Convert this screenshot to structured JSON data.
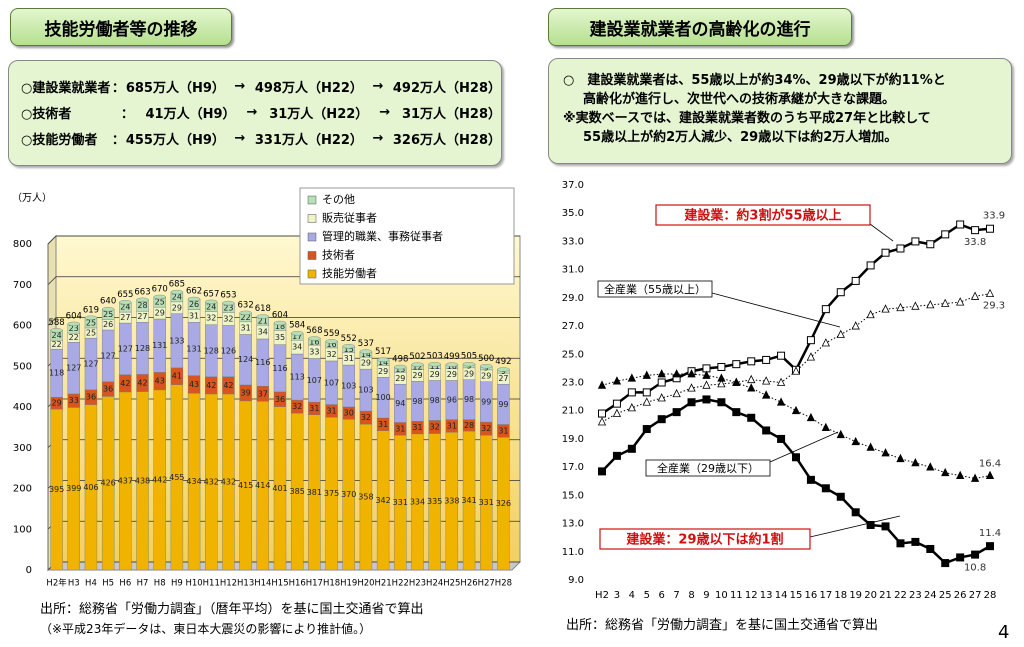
{
  "left_header": "技能労働者等の推移",
  "left_summary": [
    [
      "○建設業就業者",
      "：",
      "685万人（H9）",
      "→",
      "498万人（H22）",
      "→",
      "492万人（H28）"
    ],
    [
      "○技術者",
      "：",
      "41万人（H9）",
      "→",
      "31万人（H22）",
      "→",
      "31万人（H28）"
    ],
    [
      "○技能労働者",
      "：",
      "455万人（H9）",
      "→",
      "331万人（H22）",
      "→",
      "326万人（H28）"
    ]
  ],
  "right_header": "建設業就業者の高齢化の進行",
  "right_summary": [
    "○　建設業就業者は、55歳以上が約34%、29歳以下が約11%と",
    "高齢化が進行し、次世代への技術承継が大きな課題。",
    "※実数ベースでは、建設業就業者数のうち平成27年と比較して",
    "55歳以上が約2万人減少、29歳以下は約2万人増加。"
  ],
  "left_sources": [
    "出所：総務省「労働力調査」（暦年平均）を基に国土交通省で算出",
    "（※平成23年データは、東日本大震災の影響により推計値。）"
  ],
  "right_source": "出所：総務省「労働力調査」を基に国土交通省で算出",
  "page_number": "4",
  "chart_data": [
    {
      "type": "bar",
      "stacked": true,
      "ylabel": "（万人）",
      "categories": [
        "H2年",
        "H3",
        "H4",
        "H5",
        "H6",
        "H7",
        "H8",
        "H9",
        "H10",
        "H11",
        "H12",
        "H13",
        "H14",
        "H15",
        "H16",
        "H17",
        "H18",
        "H19",
        "H20",
        "H21",
        "H22",
        "H23",
        "H24",
        "H25",
        "H26",
        "H27",
        "H28"
      ],
      "series": [
        {
          "name": "技能労働者",
          "color": "#f0b400",
          "values": [
            395,
            399,
            406,
            426,
            437,
            438,
            442,
            455,
            434,
            432,
            432,
            415,
            414,
            401,
            385,
            381,
            375,
            370,
            358,
            342,
            331,
            334,
            335,
            338,
            341,
            331,
            326
          ]
        },
        {
          "name": "技術者",
          "color": "#d9541e",
          "values": [
            29,
            33,
            36,
            36,
            42,
            42,
            43,
            41,
            43,
            42,
            42,
            39,
            37,
            36,
            32,
            31,
            31,
            30,
            32,
            31,
            31,
            31,
            32,
            31,
            28,
            32,
            31
          ]
        },
        {
          "name": "管理的職業、事務従事者",
          "color": "#a9a9e6",
          "values": [
            118,
            127,
            127,
            127,
            127,
            128,
            131,
            133,
            131,
            128,
            126,
            124,
            116,
            116,
            113,
            107,
            107,
            103,
            103,
            100,
            94,
            98,
            98,
            96,
            98,
            99,
            99
          ]
        },
        {
          "name": "販売従事者",
          "color": "#eef4c8",
          "values": [
            22,
            22,
            25,
            26,
            27,
            27,
            29,
            29,
            31,
            32,
            32,
            31,
            34,
            35,
            34,
            33,
            32,
            31,
            29,
            29,
            29,
            29,
            29,
            29,
            29,
            29,
            27
          ]
        },
        {
          "name": "その他",
          "color": "#b6dfb6",
          "values": [
            24,
            23,
            25,
            25,
            24,
            28,
            25,
            24,
            26,
            24,
            23,
            22,
            21,
            18,
            17,
            16,
            16,
            15,
            14,
            14,
            13,
            12,
            11,
            10,
            9,
            9,
            9
          ]
        }
      ],
      "totals": [
        588,
        604,
        619,
        640,
        655,
        663,
        670,
        685,
        662,
        657,
        653,
        632,
        618,
        604,
        584,
        568,
        559,
        552,
        537,
        517,
        498,
        502,
        503,
        499,
        505,
        500,
        492
      ],
      "ylim": [
        0,
        800
      ],
      "yticks": [
        0,
        100,
        200,
        300,
        400,
        500,
        600,
        700,
        800
      ],
      "grid": true
    },
    {
      "type": "line",
      "categories": [
        "H2",
        "3",
        "4",
        "5",
        "6",
        "7",
        "8",
        "9",
        "10",
        "11",
        "12",
        "13",
        "14",
        "15",
        "16",
        "17",
        "18",
        "19",
        "20",
        "21",
        "22",
        "23",
        "24",
        "25",
        "26",
        "27",
        "28"
      ],
      "series": [
        {
          "name": "建設業：約3割が55歳以上",
          "color": "#000000",
          "line_style": "solid",
          "marker": "open-square",
          "values": [
            20.8,
            21.5,
            22.3,
            22.3,
            23.0,
            23.3,
            23.8,
            24.0,
            24.1,
            24.3,
            24.5,
            24.6,
            24.9,
            23.9,
            26.0,
            28.2,
            29.4,
            30.2,
            31.3,
            32.2,
            32.5,
            33.0,
            32.8,
            33.5,
            34.2,
            33.8,
            33.9
          ],
          "value_labels": [
            null,
            null,
            null,
            null,
            null,
            null,
            null,
            null,
            null,
            null,
            null,
            null,
            null,
            null,
            null,
            null,
            null,
            null,
            null,
            null,
            null,
            null,
            null,
            null,
            null,
            "33.8",
            "33.9"
          ]
        },
        {
          "name": "全産業（55歳以上）",
          "color": "#000000",
          "line_style": "dotted",
          "marker": "open-triangle",
          "values": [
            20.2,
            20.8,
            21.2,
            21.6,
            21.9,
            22.2,
            22.6,
            22.8,
            22.9,
            23.0,
            23.2,
            23.1,
            23.0,
            23.8,
            24.8,
            25.8,
            26.4,
            27.0,
            27.8,
            28.2,
            28.3,
            28.4,
            28.5,
            28.6,
            28.7,
            29.1,
            29.3
          ],
          "value_labels": [
            null,
            null,
            null,
            null,
            null,
            null,
            null,
            null,
            null,
            null,
            null,
            null,
            null,
            null,
            null,
            null,
            null,
            null,
            null,
            null,
            null,
            null,
            null,
            null,
            null,
            null,
            "29.3"
          ]
        },
        {
          "name": "全産業（29歳以下）",
          "color": "#000000",
          "line_style": "dotted",
          "marker": "triangle",
          "values": [
            22.8,
            23.1,
            23.3,
            23.5,
            23.6,
            23.6,
            23.6,
            23.5,
            23.3,
            23.0,
            22.6,
            22.1,
            21.6,
            21.0,
            20.5,
            19.8,
            19.3,
            18.8,
            18.4,
            18.0,
            17.6,
            17.3,
            17.0,
            16.6,
            16.4,
            16.2,
            16.4
          ],
          "value_labels": [
            null,
            null,
            null,
            null,
            null,
            null,
            null,
            null,
            null,
            null,
            null,
            null,
            null,
            null,
            null,
            null,
            null,
            null,
            null,
            null,
            null,
            null,
            null,
            null,
            null,
            null,
            "16.4"
          ]
        },
        {
          "name": "建設業：29歳以下は約1割",
          "color": "#000000",
          "line_style": "solid",
          "marker": "square",
          "values": [
            16.7,
            17.8,
            18.3,
            19.7,
            20.4,
            20.9,
            21.6,
            21.8,
            21.6,
            20.9,
            20.5,
            19.6,
            19.0,
            17.7,
            16.1,
            15.5,
            14.9,
            13.8,
            12.9,
            12.8,
            11.6,
            11.7,
            11.2,
            10.2,
            10.6,
            10.8,
            11.4
          ],
          "value_labels": [
            null,
            null,
            null,
            null,
            null,
            null,
            null,
            null,
            null,
            null,
            null,
            null,
            null,
            null,
            null,
            null,
            null,
            null,
            null,
            null,
            null,
            null,
            null,
            null,
            null,
            "10.8",
            "11.4"
          ]
        }
      ],
      "ylim": [
        9,
        37
      ],
      "yticks": [
        {
          "value": 9,
          "label": "9.0"
        },
        {
          "value": 11,
          "label": "11.0"
        },
        {
          "value": 13,
          "label": "13.0"
        },
        {
          "value": 15,
          "label": "15.0"
        },
        {
          "value": 17,
          "label": "17.0"
        },
        {
          "value": 19,
          "label": "19.0"
        },
        {
          "value": 21,
          "label": "21.0"
        },
        {
          "value": 23,
          "label": "23.0"
        },
        {
          "value": 25,
          "label": "25.0"
        },
        {
          "value": 27,
          "label": "27.0"
        },
        {
          "value": 29,
          "label": "29.0"
        },
        {
          "value": 31,
          "label": "31.0"
        },
        {
          "value": 33,
          "label": "33.0"
        },
        {
          "value": 35,
          "label": "35.0"
        },
        {
          "value": 37,
          "label": "37.0"
        }
      ],
      "grid": false
    }
  ]
}
